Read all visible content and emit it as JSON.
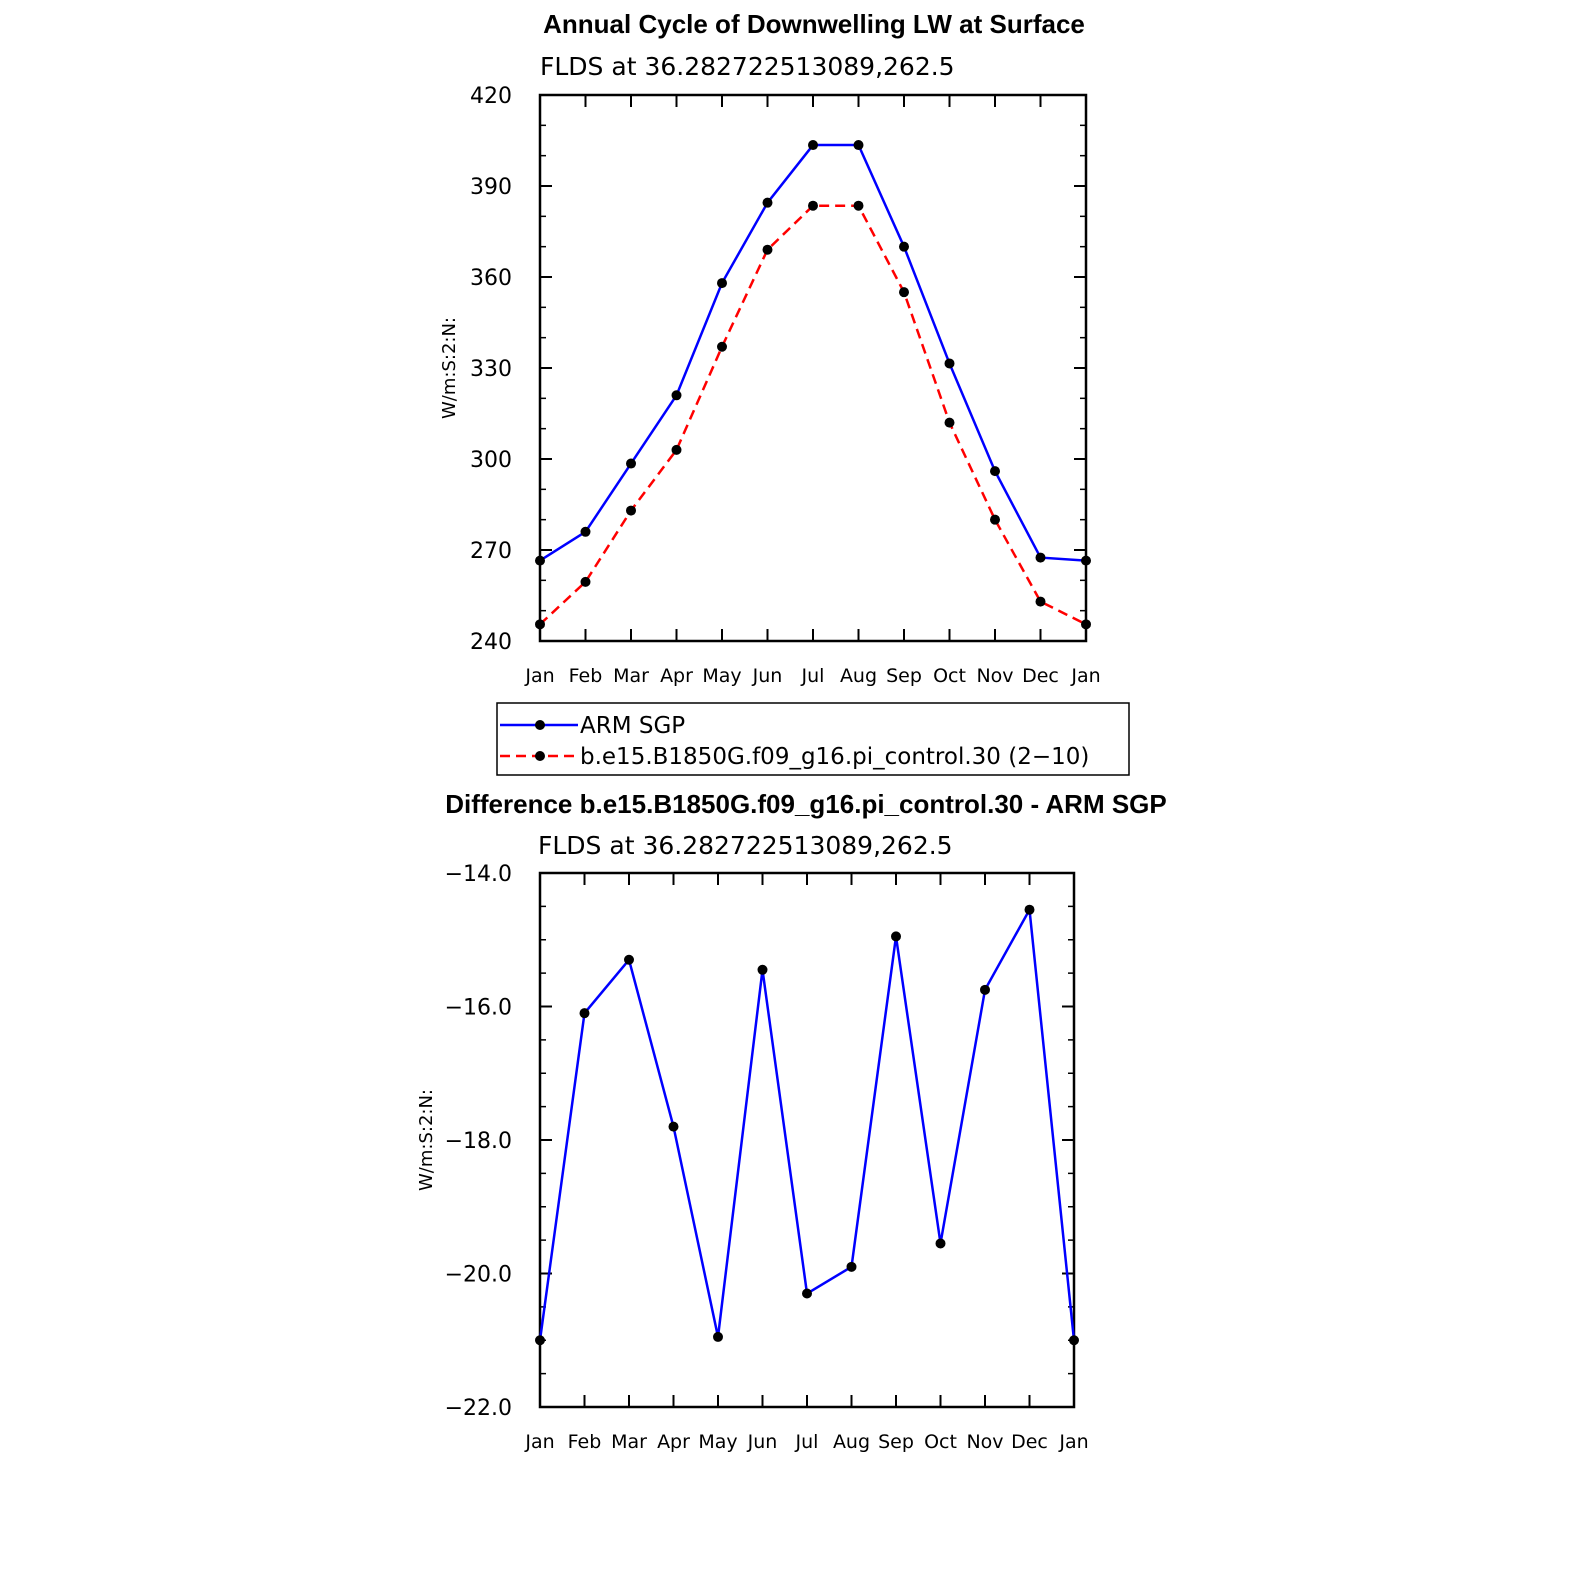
{
  "chart_data": [
    {
      "type": "line",
      "title": "Annual Cycle of Downwelling LW at Surface",
      "subtitle": "FLDS at 36.282722513089,262.5",
      "xlabel": "",
      "ylabel": "W/m:S:2:N:",
      "categories": [
        "Jan",
        "Feb",
        "Mar",
        "Apr",
        "May",
        "Jun",
        "Jul",
        "Aug",
        "Sep",
        "Oct",
        "Nov",
        "Dec",
        "Jan"
      ],
      "ylim": [
        240,
        420
      ],
      "yticks": [
        "240",
        "270",
        "300",
        "330",
        "360",
        "390",
        "420"
      ],
      "series": [
        {
          "name": "ARM SGP",
          "color": "#0000ff",
          "dash": "solid",
          "values": [
            266.5,
            276,
            298.5,
            321,
            358,
            384.5,
            403.5,
            403.5,
            370,
            331.5,
            296,
            267.5,
            266.5
          ]
        },
        {
          "name": "b.e15.B1850G.f09_g16.pi_control.30 (2−10)",
          "color": "#ff0000",
          "dash": "dashed",
          "values": [
            245.5,
            259.5,
            283,
            303,
            337,
            369,
            383.5,
            383.5,
            355,
            312,
            280,
            253,
            245.5
          ]
        }
      ],
      "legend": "below"
    },
    {
      "type": "line",
      "title": "Difference b.e15.B1850G.f09_g16.pi_control.30 - ARM SGP",
      "subtitle": "FLDS at 36.282722513089,262.5",
      "xlabel": "",
      "ylabel": "W/m:S:2:N:",
      "categories": [
        "Jan",
        "Feb",
        "Mar",
        "Apr",
        "May",
        "Jun",
        "Jul",
        "Aug",
        "Sep",
        "Oct",
        "Nov",
        "Dec",
        "Jan"
      ],
      "ylim": [
        -22,
        -14
      ],
      "yticks": [
        "−22.0",
        "−20.0",
        "−18.0",
        "−16.0",
        "−14.0"
      ],
      "series": [
        {
          "color": "#0000ff",
          "dash": "solid",
          "values": [
            -21.0,
            -16.1,
            -15.3,
            -17.8,
            -20.95,
            -15.45,
            -20.3,
            -19.9,
            -14.95,
            -19.55,
            -15.75,
            -14.55,
            -21.0
          ]
        }
      ]
    }
  ]
}
